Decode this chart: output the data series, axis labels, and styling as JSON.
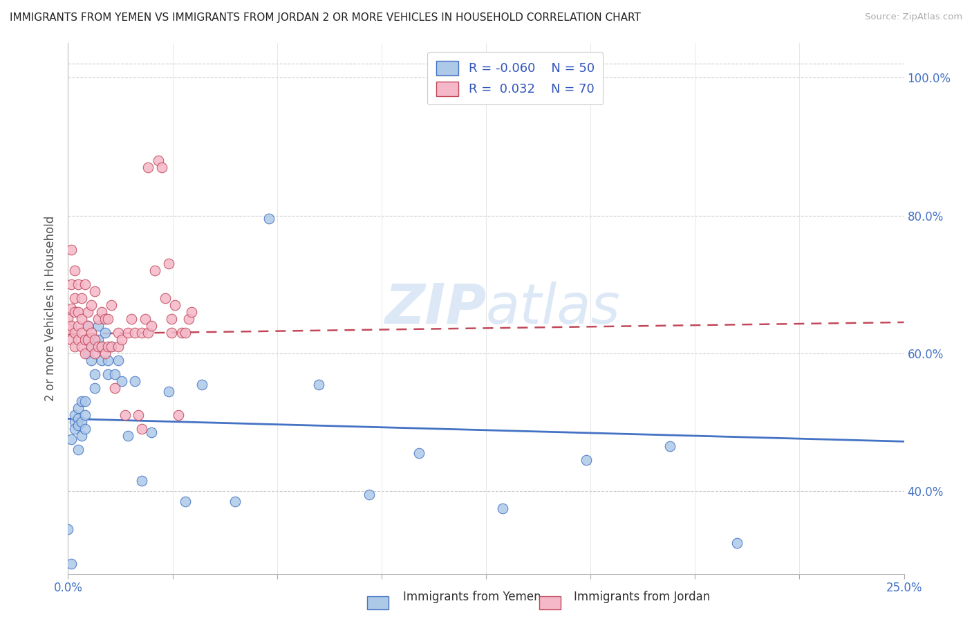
{
  "title": "IMMIGRANTS FROM YEMEN VS IMMIGRANTS FROM JORDAN 2 OR MORE VEHICLES IN HOUSEHOLD CORRELATION CHART",
  "source": "Source: ZipAtlas.com",
  "ylabel": "2 or more Vehicles in Household",
  "legend_R": [
    "-0.060",
    "0.032"
  ],
  "legend_N": [
    "50",
    "70"
  ],
  "color_yemen": "#adc9e8",
  "color_jordan": "#f5b8c8",
  "line_color_yemen": "#4472c4",
  "line_color_jordan": "#c0485a",
  "watermark_color": "#c5daf0",
  "yemen_scatter_x": [
    0.0,
    0.001,
    0.001,
    0.002,
    0.002,
    0.002,
    0.003,
    0.003,
    0.003,
    0.003,
    0.004,
    0.004,
    0.004,
    0.005,
    0.005,
    0.005,
    0.006,
    0.006,
    0.006,
    0.007,
    0.007,
    0.008,
    0.008,
    0.009,
    0.009,
    0.01,
    0.01,
    0.011,
    0.012,
    0.012,
    0.013,
    0.014,
    0.015,
    0.016,
    0.018,
    0.02,
    0.022,
    0.025,
    0.03,
    0.035,
    0.04,
    0.05,
    0.06,
    0.075,
    0.09,
    0.105,
    0.13,
    0.155,
    0.18,
    0.2
  ],
  "yemen_scatter_y": [
    0.345,
    0.295,
    0.475,
    0.5,
    0.51,
    0.49,
    0.505,
    0.495,
    0.52,
    0.46,
    0.48,
    0.5,
    0.53,
    0.49,
    0.51,
    0.53,
    0.62,
    0.6,
    0.64,
    0.59,
    0.61,
    0.55,
    0.57,
    0.62,
    0.64,
    0.59,
    0.61,
    0.63,
    0.57,
    0.59,
    0.61,
    0.57,
    0.59,
    0.56,
    0.48,
    0.56,
    0.415,
    0.485,
    0.545,
    0.385,
    0.555,
    0.385,
    0.795,
    0.555,
    0.395,
    0.455,
    0.375,
    0.445,
    0.465,
    0.325
  ],
  "jordan_scatter_x": [
    0.0,
    0.0,
    0.001,
    0.001,
    0.001,
    0.001,
    0.001,
    0.002,
    0.002,
    0.002,
    0.002,
    0.002,
    0.003,
    0.003,
    0.003,
    0.003,
    0.004,
    0.004,
    0.004,
    0.004,
    0.005,
    0.005,
    0.005,
    0.006,
    0.006,
    0.006,
    0.007,
    0.007,
    0.007,
    0.008,
    0.008,
    0.008,
    0.009,
    0.009,
    0.01,
    0.01,
    0.011,
    0.011,
    0.012,
    0.012,
    0.013,
    0.013,
    0.014,
    0.015,
    0.015,
    0.016,
    0.017,
    0.018,
    0.019,
    0.02,
    0.021,
    0.022,
    0.022,
    0.023,
    0.024,
    0.024,
    0.025,
    0.026,
    0.027,
    0.028,
    0.029,
    0.03,
    0.031,
    0.031,
    0.032,
    0.033,
    0.034,
    0.035,
    0.036,
    0.037
  ],
  "jordan_scatter_y": [
    0.635,
    0.65,
    0.62,
    0.64,
    0.665,
    0.7,
    0.75,
    0.61,
    0.63,
    0.66,
    0.68,
    0.72,
    0.62,
    0.64,
    0.66,
    0.7,
    0.61,
    0.63,
    0.65,
    0.68,
    0.6,
    0.62,
    0.7,
    0.62,
    0.64,
    0.66,
    0.61,
    0.63,
    0.67,
    0.6,
    0.62,
    0.69,
    0.61,
    0.65,
    0.61,
    0.66,
    0.6,
    0.65,
    0.61,
    0.65,
    0.61,
    0.67,
    0.55,
    0.61,
    0.63,
    0.62,
    0.51,
    0.63,
    0.65,
    0.63,
    0.51,
    0.49,
    0.63,
    0.65,
    0.63,
    0.87,
    0.64,
    0.72,
    0.88,
    0.87,
    0.68,
    0.73,
    0.63,
    0.65,
    0.67,
    0.51,
    0.63,
    0.63,
    0.65,
    0.66
  ],
  "xlim": [
    0.0,
    0.25
  ],
  "ylim": [
    0.28,
    1.05
  ],
  "ytick_vals": [
    0.4,
    0.6,
    0.8,
    1.0
  ],
  "ytick_labels": [
    "40.0%",
    "60.0%",
    "80.0%",
    "100.0%"
  ],
  "xtick_vals": [
    0.0,
    0.03125,
    0.0625,
    0.09375,
    0.125,
    0.15625,
    0.1875,
    0.21875,
    0.25
  ],
  "background_color": "#ffffff",
  "yemen_line_x0": 0.0,
  "yemen_line_x1": 0.25,
  "yemen_line_y0": 0.505,
  "yemen_line_y1": 0.472,
  "jordan_line_x0": 0.0,
  "jordan_line_x1": 0.25,
  "jordan_line_y0": 0.628,
  "jordan_line_y1": 0.645
}
